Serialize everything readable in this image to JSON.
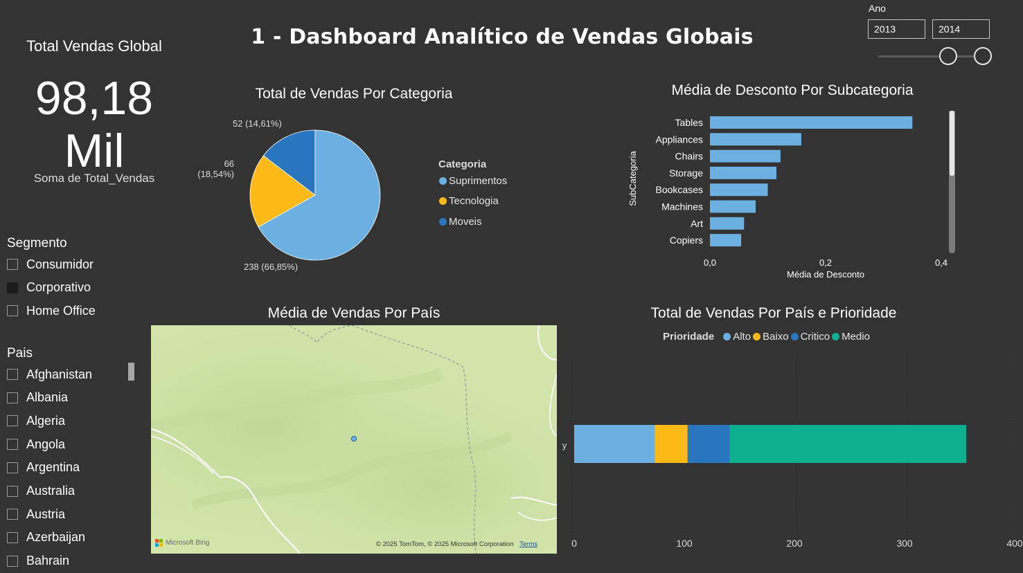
{
  "header": {
    "title": "1 - Dashboard Analítico de Vendas Globais"
  },
  "kpi": {
    "title": "Total Vendas Global",
    "value": "98,18",
    "unit": "Mil",
    "subtitle": "Soma de Total_Vendas"
  },
  "ano_filter": {
    "label": "Ano",
    "start": "2013",
    "end": "2014",
    "range": [
      2013,
      2014
    ]
  },
  "segmento": {
    "title": "Segmento",
    "items": [
      {
        "label": "Consumidor",
        "checked": false
      },
      {
        "label": "Corporativo",
        "checked": true
      },
      {
        "label": "Home Office",
        "checked": false
      }
    ]
  },
  "pais_slicer": {
    "title": "Pais",
    "items": [
      "Afghanistan",
      "Albania",
      "Algeria",
      "Angola",
      "Argentina",
      "Australia",
      "Austria",
      "Azerbaijan",
      "Bahrain"
    ]
  },
  "map": {
    "title": "Média de Vendas Por País",
    "brand": "Microsoft Bing",
    "copyright": "© 2025 TomTom, © 2025 Microsoft Corporation",
    "terms": "Terms"
  },
  "colors": {
    "light_blue": "#6CB0E2",
    "yellow": "#FDB916",
    "dark_blue": "#2976BF",
    "teal": "#0FB092",
    "background": "#333333"
  },
  "chart_data": [
    {
      "type": "pie",
      "title": "Total de Vendas Por Categoria",
      "legend_title": "Categoria",
      "legend_position": "right",
      "slices": [
        {
          "name": "Suprimentos",
          "value": 238,
          "percent": 66.85,
          "label": "238 (66,85%)",
          "color": "#6CB0E2"
        },
        {
          "name": "Tecnologia",
          "value": 66,
          "percent": 18.54,
          "label_value": "66",
          "label_pct": "(18,54%)",
          "color": "#FDB916"
        },
        {
          "name": "Moveis",
          "value": 52,
          "percent": 14.61,
          "label": "52 (14,61%)",
          "color": "#2976BF"
        }
      ]
    },
    {
      "type": "bar",
      "orientation": "horizontal",
      "title": "Média de Desconto Por Subcategoria",
      "xlabel": "Média de Desconto",
      "ylabel": "SubCategoria",
      "categories": [
        "Tables",
        "Appliances",
        "Chairs",
        "Storage",
        "Bookcases",
        "Machines",
        "Art",
        "Copiers"
      ],
      "values": [
        0.35,
        0.158,
        0.122,
        0.115,
        0.1,
        0.079,
        0.059,
        0.054
      ],
      "xlim": [
        0,
        0.4
      ],
      "xticks": [
        "0,0",
        "0,2",
        "0,4"
      ],
      "color": "#6CB0E2"
    },
    {
      "type": "bar",
      "orientation": "horizontal",
      "stacked": true,
      "title": "Total de Vendas Por País e Prioridade",
      "legend_title": "Prioridade",
      "legend_position": "top",
      "categories": [
        "y"
      ],
      "series": [
        {
          "name": "Alto",
          "values": [
            73
          ],
          "color": "#6CB0E2"
        },
        {
          "name": "Baixo",
          "values": [
            30
          ],
          "color": "#FDB916"
        },
        {
          "name": "Critico",
          "values": [
            38
          ],
          "color": "#2976BF"
        },
        {
          "name": "Medio",
          "values": [
            215
          ],
          "color": "#0FB092"
        }
      ],
      "xlim": [
        0,
        400
      ],
      "xticks": [
        "0",
        "100",
        "200",
        "300",
        "400"
      ]
    }
  ]
}
